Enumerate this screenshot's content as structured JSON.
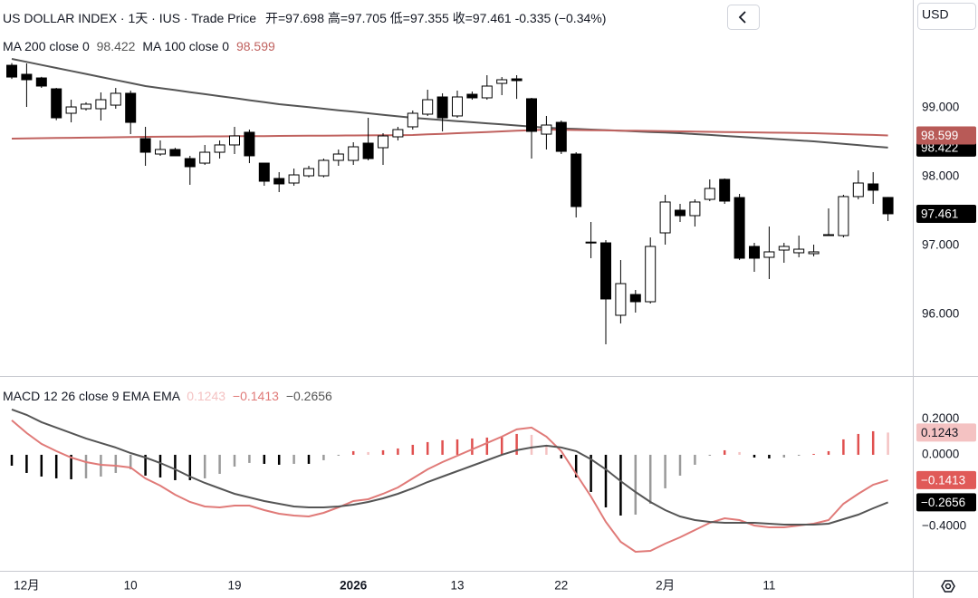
{
  "header": {
    "title": "US DOLLAR INDEX · 1天 · IUS · Trade Price",
    "open_label": "开=",
    "high_label": "高=",
    "low_label": "低=",
    "close_label": "收=",
    "change": "-0.335 (−0.34%)",
    "currency": "USD"
  },
  "chart_data": [
    {
      "type": "candlestick",
      "categories": [
        null,
        "12月",
        null,
        null,
        null,
        null,
        null,
        null,
        "10",
        null,
        null,
        null,
        null,
        null,
        null,
        "19",
        null,
        null,
        null,
        null,
        null,
        null,
        null,
        "2026",
        null,
        null,
        null,
        null,
        null,
        null,
        "13",
        null,
        null,
        null,
        null,
        null,
        null,
        "22",
        null,
        null,
        null,
        null,
        null,
        null,
        "2月",
        null,
        null,
        null,
        null,
        null,
        null,
        "11",
        null,
        null,
        null,
        null,
        null,
        null,
        null,
        null
      ],
      "bold_ticks": [
        23
      ],
      "ohlc": [
        [
          99.618,
          99.65,
          99.42,
          99.447
        ],
        [
          99.487,
          99.645,
          99.013,
          99.408
        ],
        [
          99.434,
          99.45,
          99.29,
          99.316
        ],
        [
          99.276,
          99.29,
          98.82,
          98.855
        ],
        [
          98.921,
          99.118,
          98.789,
          99.013
        ],
        [
          98.987,
          99.08,
          98.96,
          99.053
        ],
        [
          98.987,
          99.224,
          98.816,
          99.118
        ],
        [
          99.039,
          99.289,
          98.987,
          99.211
        ],
        [
          99.211,
          99.25,
          98.618,
          98.789
        ],
        [
          98.553,
          98.724,
          98.158,
          98.355
        ],
        [
          98.329,
          98.526,
          98.303,
          98.395
        ],
        [
          98.395,
          98.42,
          98.3,
          98.303
        ],
        [
          98.263,
          98.303,
          97.882,
          98.145
        ],
        [
          98.197,
          98.461,
          98.171,
          98.355
        ],
        [
          98.355,
          98.526,
          98.263,
          98.461
        ],
        [
          98.461,
          98.724,
          98.329,
          98.592
        ],
        [
          98.645,
          98.684,
          98.197,
          98.303
        ],
        [
          98.197,
          98.197,
          97.868,
          97.934
        ],
        [
          97.974,
          98.066,
          97.776,
          97.895
        ],
        [
          97.908,
          98.118,
          97.868,
          98.026
        ],
        [
          98.013,
          98.158,
          97.99,
          98.118
        ],
        [
          98.013,
          98.263,
          97.99,
          98.237
        ],
        [
          98.237,
          98.395,
          98.158,
          98.329
        ],
        [
          98.237,
          98.5,
          98.171,
          98.434
        ],
        [
          98.487,
          98.855,
          98.237,
          98.263
        ],
        [
          98.421,
          98.632,
          98.171,
          98.592
        ],
        [
          98.579,
          98.724,
          98.526,
          98.684
        ],
        [
          98.724,
          98.961,
          98.684,
          98.921
        ],
        [
          98.908,
          99.263,
          98.882,
          99.118
        ],
        [
          99.158,
          99.211,
          98.658,
          98.855
        ],
        [
          98.882,
          99.25,
          98.855,
          99.158
        ],
        [
          99.197,
          99.237,
          99.118,
          99.145
        ],
        [
          99.145,
          99.474,
          99.118,
          99.316
        ],
        [
          99.355,
          99.447,
          99.184,
          99.408
        ],
        [
          99.421,
          99.474,
          99.13,
          99.395
        ],
        [
          99.132,
          99.145,
          98.263,
          98.658
        ],
        [
          98.618,
          98.882,
          98.395,
          98.75
        ],
        [
          98.789,
          98.816,
          98.329,
          98.368
        ],
        [
          98.329,
          98.355,
          97.408,
          97.566
        ],
        [
          97.039,
          97.342,
          96.816,
          97.05
        ],
        [
          97.039,
          97.079,
          95.566,
          96.224
        ],
        [
          95.987,
          96.789,
          95.868,
          96.447
        ],
        [
          96.289,
          96.355,
          96.026,
          96.184
        ],
        [
          96.184,
          97.118,
          96.158,
          96.987
        ],
        [
          97.184,
          97.737,
          97.013,
          97.632
        ],
        [
          97.513,
          97.605,
          97.342,
          97.434
        ],
        [
          97.434,
          97.671,
          97.276,
          97.632
        ],
        [
          97.671,
          97.961,
          97.645,
          97.829
        ],
        [
          97.961,
          97.974,
          97.605,
          97.645
        ],
        [
          97.697,
          97.75,
          96.789,
          96.816
        ],
        [
          96.987,
          97.039,
          96.618,
          96.816
        ],
        [
          96.829,
          97.276,
          96.513,
          96.908
        ],
        [
          96.934,
          97.039,
          96.75,
          96.987
        ],
        [
          96.895,
          97.145,
          96.829,
          96.947
        ],
        [
          96.882,
          97.013,
          96.842,
          96.908
        ],
        [
          97.145,
          97.539,
          97.145,
          97.158
        ],
        [
          97.145,
          97.737,
          97.118,
          97.711
        ],
        [
          97.711,
          98.092,
          97.671,
          97.908
        ],
        [
          97.895,
          98.066,
          97.605,
          97.803
        ],
        [
          97.698,
          97.705,
          97.355,
          97.461
        ]
      ],
      "up_color": "#ffffff",
      "down_color": "#000000",
      "outline_color": "#000000",
      "series": [
        {
          "name": "MA 200 close 0",
          "color": "#555555",
          "badge_color": "#000000",
          "values": [
            99.711,
            99.667,
            99.623,
            99.579,
            99.535,
            99.492,
            99.448,
            99.404,
            99.36,
            99.316,
            99.287,
            99.258,
            99.228,
            99.199,
            99.17,
            99.141,
            99.111,
            99.082,
            99.053,
            99.031,
            99.009,
            98.987,
            98.965,
            98.943,
            98.921,
            98.899,
            98.877,
            98.855,
            98.839,
            98.823,
            98.807,
            98.791,
            98.775,
            98.759,
            98.743,
            98.727,
            98.711,
            98.702,
            98.693,
            98.684,
            98.676,
            98.667,
            98.658,
            98.649,
            98.641,
            98.632,
            98.619,
            98.606,
            98.592,
            98.579,
            98.566,
            98.553,
            98.54,
            98.526,
            98.513,
            98.495,
            98.477,
            98.459,
            98.44,
            98.422
          ]
        },
        {
          "name": "MA 100 close 0",
          "color": "#c0625f",
          "badge_color": "#b85a57",
          "values": [
            98.553,
            98.556,
            98.559,
            98.562,
            98.565,
            98.567,
            98.57,
            98.573,
            98.576,
            98.579,
            98.58,
            98.582,
            98.583,
            98.585,
            98.586,
            98.588,
            98.589,
            98.59,
            98.592,
            98.593,
            98.595,
            98.596,
            98.598,
            98.599,
            98.6,
            98.602,
            98.603,
            98.605,
            98.614,
            98.623,
            98.631,
            98.64,
            98.649,
            98.658,
            98.667,
            98.675,
            98.684,
            98.681,
            98.678,
            98.675,
            98.672,
            98.669,
            98.667,
            98.664,
            98.661,
            98.658,
            98.655,
            98.652,
            98.649,
            98.646,
            98.643,
            98.64,
            98.638,
            98.635,
            98.632,
            98.625,
            98.619,
            98.612,
            98.606,
            98.599
          ]
        }
      ],
      "last_badge_color": "#000000",
      "ylim": [
        95.105,
        100.566
      ],
      "yticks": [
        {
          "value": 96,
          "label": "96.000"
        },
        {
          "value": 97,
          "label": "97.000"
        },
        {
          "value": 98,
          "label": "98.000"
        },
        {
          "value": 99,
          "label": "99.000"
        }
      ]
    },
    {
      "type": "macd",
      "title": "MACD 12 26 close 9 EMA EMA",
      "histogram": {
        "values": [
          -0.0608,
          -0.1013,
          -0.1215,
          -0.1316,
          -0.1367,
          -0.1316,
          -0.1215,
          -0.1013,
          -0.081,
          -0.1164,
          -0.1266,
          -0.1418,
          -0.1418,
          -0.1316,
          -0.1064,
          -0.0658,
          -0.0455,
          -0.0507,
          -0.0557,
          -0.0506,
          -0.0506,
          -0.0304,
          -0.0051,
          0.0203,
          0.0152,
          0.0253,
          0.0354,
          0.0557,
          0.0709,
          0.081,
          0.086,
          0.0912,
          0.0962,
          0.1013,
          0.1165,
          0.1114,
          0.0507,
          -0.0202,
          -0.1266,
          -0.2076,
          -0.2937,
          -0.3393,
          -0.3342,
          -0.2734,
          -0.1873,
          -0.1165,
          -0.0557,
          -0.005,
          0.0253,
          0.0151,
          -0.0152,
          -0.0203,
          -0.0152,
          -0.005,
          0.0051,
          0.0202,
          0.0861,
          0.1165,
          0.1316,
          0.1243
        ],
        "colors": {
          "pos_rising": "#e0504f",
          "pos_falling": "#f4c2c2",
          "neg_falling": "#000000",
          "neg_rising": "#9a9a9a"
        }
      },
      "series": [
        {
          "color": "#e07a78",
          "badge_color": "#e05a58",
          "last_label": "−0.1413",
          "values": [
            0.1924,
            0.1215,
            0.0608,
            0.0203,
            -0.0152,
            -0.0405,
            -0.0557,
            -0.0608,
            -0.0709,
            -0.1316,
            -0.1722,
            -0.2228,
            -0.2633,
            -0.2886,
            -0.2937,
            -0.2835,
            -0.2835,
            -0.3089,
            -0.3291,
            -0.3392,
            -0.3443,
            -0.3241,
            -0.2937,
            -0.2582,
            -0.2481,
            -0.2177,
            -0.1823,
            -0.1316,
            -0.081,
            -0.0405,
            -0.0051,
            0.0304,
            0.0658,
            0.1013,
            0.1418,
            0.1519,
            0.1013,
            0.0203,
            -0.1063,
            -0.2329,
            -0.3747,
            -0.4861,
            -0.5418,
            -0.5367,
            -0.4962,
            -0.4608,
            -0.4203,
            -0.3797,
            -0.3544,
            -0.3646,
            -0.3949,
            -0.4051,
            -0.4051,
            -0.3949,
            -0.3848,
            -0.3646,
            -0.2734,
            -0.2177,
            -0.1671,
            -0.1413
          ]
        },
        {
          "color": "#555555",
          "badge_color": "#000000",
          "last_label": "−0.2656",
          "values": [
            0.2532,
            0.2228,
            0.1823,
            0.1519,
            0.1215,
            0.0911,
            0.0658,
            0.0405,
            0.0101,
            -0.0152,
            -0.0456,
            -0.081,
            -0.1215,
            -0.157,
            -0.1873,
            -0.2177,
            -0.238,
            -0.2582,
            -0.2734,
            -0.2886,
            -0.2937,
            -0.2937,
            -0.2886,
            -0.2785,
            -0.2633,
            -0.243,
            -0.2177,
            -0.1873,
            -0.1519,
            -0.1215,
            -0.0911,
            -0.0608,
            -0.0304,
            0,
            0.0253,
            0.0405,
            0.0506,
            0.0405,
            0.0203,
            -0.0253,
            -0.081,
            -0.1468,
            -0.2076,
            -0.2633,
            -0.3089,
            -0.3443,
            -0.3646,
            -0.3747,
            -0.3797,
            -0.3797,
            -0.3797,
            -0.3848,
            -0.3899,
            -0.3899,
            -0.3899,
            -0.3848,
            -0.3595,
            -0.3342,
            -0.2987,
            -0.2656
          ]
        }
      ],
      "ylim": [
        -0.648,
        0.44
      ],
      "yticks": [
        {
          "value": -0.4,
          "label": "−0.4000"
        },
        {
          "value": 0,
          "label": "0.0000"
        },
        {
          "value": 0.2,
          "label": "0.2000"
        }
      ]
    }
  ]
}
